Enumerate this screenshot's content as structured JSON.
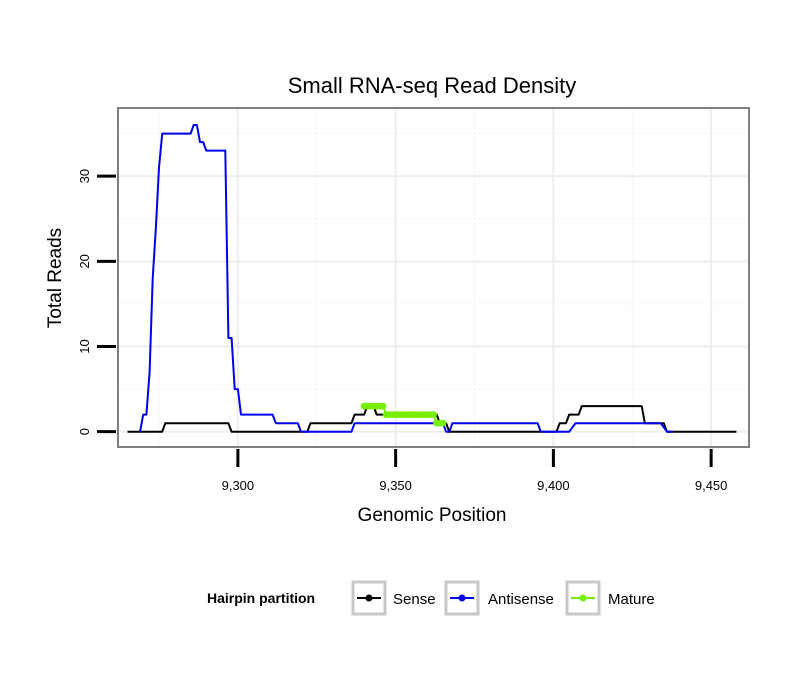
{
  "chart_data": {
    "type": "line",
    "title": "Small RNA-seq Read Density",
    "xlabel": "Genomic Position",
    "ylabel": "Total Reads",
    "xlim": [
      9262,
      9462
    ],
    "ylim": [
      -1.8,
      38
    ],
    "x_ticks": [
      9300,
      9350,
      9400,
      9450
    ],
    "x_tick_labels": [
      "9,300",
      "9,350",
      "9,400",
      "9,450"
    ],
    "y_ticks": [
      0,
      10,
      20,
      30
    ],
    "y_tick_labels": [
      "0",
      "10",
      "20",
      "30"
    ],
    "grid": true,
    "legend": {
      "title": "Hairpin partition",
      "position": "bottom",
      "entries": [
        "Sense",
        "Antisense",
        "Mature"
      ]
    },
    "series": [
      {
        "name": "Sense",
        "color": "#000000",
        "points": [
          [
            9265,
            0
          ],
          [
            9276,
            0
          ],
          [
            9277,
            1
          ],
          [
            9297,
            1
          ],
          [
            9298,
            0
          ],
          [
            9322,
            0
          ],
          [
            9323,
            1
          ],
          [
            9336,
            1
          ],
          [
            9337,
            2
          ],
          [
            9340,
            2
          ],
          [
            9341,
            3
          ],
          [
            9343,
            3
          ],
          [
            9344,
            2
          ],
          [
            9349,
            2
          ],
          [
            9350,
            2
          ],
          [
            9363,
            2
          ],
          [
            9364,
            1
          ],
          [
            9366,
            1
          ],
          [
            9367,
            0
          ],
          [
            9401,
            0
          ],
          [
            9402,
            1
          ],
          [
            9404,
            1
          ],
          [
            9405,
            2
          ],
          [
            9408,
            2
          ],
          [
            9409,
            3
          ],
          [
            9428,
            3
          ],
          [
            9429,
            1
          ],
          [
            9435,
            1
          ],
          [
            9436,
            0
          ],
          [
            9458,
            0
          ]
        ]
      },
      {
        "name": "Antisense",
        "color": "#0000ee",
        "points": [
          [
            9269,
            0
          ],
          [
            9270,
            2
          ],
          [
            9271,
            2
          ],
          [
            9272,
            7
          ],
          [
            9273,
            18
          ],
          [
            9274,
            24
          ],
          [
            9275,
            31
          ],
          [
            9276,
            35
          ],
          [
            9285,
            35
          ],
          [
            9286,
            36
          ],
          [
            9287,
            36
          ],
          [
            9288,
            34
          ],
          [
            9289,
            34
          ],
          [
            9290,
            33
          ],
          [
            9296,
            33
          ],
          [
            9297,
            11
          ],
          [
            9298,
            11
          ],
          [
            9299,
            5
          ],
          [
            9300,
            5
          ],
          [
            9301,
            2
          ],
          [
            9311,
            2
          ],
          [
            9312,
            1
          ],
          [
            9319,
            1
          ],
          [
            9320,
            0
          ],
          [
            9336,
            0
          ],
          [
            9337,
            1
          ],
          [
            9349,
            1
          ],
          [
            9350,
            1
          ],
          [
            9363,
            1
          ],
          [
            9364,
            1
          ],
          [
            9365,
            1
          ],
          [
            9366,
            0
          ],
          [
            9367,
            0
          ],
          [
            9368,
            1
          ],
          [
            9395,
            1
          ],
          [
            9396,
            0
          ],
          [
            9405,
            0
          ],
          [
            9407,
            1
          ],
          [
            9434,
            1
          ],
          [
            9436,
            0
          ],
          [
            9438,
            0
          ]
        ]
      },
      {
        "name": "Mature",
        "color": "#77ee00",
        "points": [
          [
            9340,
            3
          ],
          [
            9341,
            3
          ],
          [
            9342,
            3
          ],
          [
            9343,
            3
          ],
          [
            9344,
            3
          ],
          [
            9345,
            3
          ],
          [
            9346,
            3
          ],
          [
            9347,
            2
          ],
          [
            9348,
            2
          ],
          [
            9349,
            2
          ],
          [
            9350,
            2
          ],
          [
            9351,
            2
          ],
          [
            9352,
            2
          ],
          [
            9353,
            2
          ],
          [
            9354,
            2
          ],
          [
            9355,
            2
          ],
          [
            9356,
            2
          ],
          [
            9357,
            2
          ],
          [
            9358,
            2
          ],
          [
            9359,
            2
          ],
          [
            9360,
            2
          ],
          [
            9361,
            2
          ],
          [
            9362,
            2
          ],
          [
            9363,
            1
          ],
          [
            9364,
            1
          ],
          [
            9365,
            1
          ]
        ]
      }
    ]
  }
}
